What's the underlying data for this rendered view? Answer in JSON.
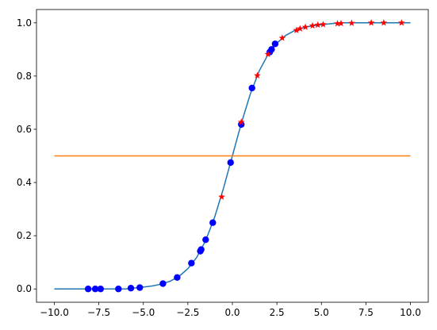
{
  "chart_data": {
    "type": "line",
    "title": "",
    "xlabel": "",
    "ylabel": "",
    "xlim": [
      -11,
      11
    ],
    "ylim": [
      -0.05,
      1.05
    ],
    "x_ticks": [
      -10.0,
      -7.5,
      -5.0,
      -2.5,
      0.0,
      2.5,
      5.0,
      7.5,
      10.0
    ],
    "x_tick_labels": [
      "−10.0",
      "−7.5",
      "−5.0",
      "−2.5",
      "0.0",
      "2.5",
      "5.0",
      "7.5",
      "10.0"
    ],
    "y_ticks": [
      0.0,
      0.2,
      0.4,
      0.6,
      0.8,
      1.0
    ],
    "y_tick_labels": [
      "0.0",
      "0.2",
      "0.4",
      "0.6",
      "0.8",
      "1.0"
    ],
    "grid": false,
    "legend": "none",
    "series": [
      {
        "kind": "line",
        "color": "#1f77b4",
        "x": [
          -10,
          -9,
          -8,
          -7,
          -6,
          -5,
          -4.5,
          -4,
          -3.5,
          -3,
          -2.5,
          -2,
          -1.5,
          -1,
          -0.5,
          0,
          0.5,
          1,
          1.5,
          2,
          2.5,
          3,
          3.5,
          4,
          4.5,
          5,
          6,
          7,
          8,
          9,
          10
        ],
        "y": [
          0.0,
          0.0,
          0.0,
          0.0,
          0.0,
          0.007,
          0.011,
          0.018,
          0.029,
          0.047,
          0.076,
          0.119,
          0.182,
          0.269,
          0.378,
          0.5,
          0.622,
          0.731,
          0.818,
          0.881,
          0.924,
          0.953,
          0.971,
          0.982,
          0.989,
          0.993,
          1.0,
          1.0,
          1.0,
          1.0,
          1.0
        ]
      },
      {
        "kind": "line",
        "color": "#ff7f0e",
        "x": [
          -10,
          10
        ],
        "y": [
          0.5,
          0.5
        ]
      },
      {
        "kind": "scatter",
        "marker": "circle",
        "color": "#0000ff",
        "x": [
          -8.1,
          -7.7,
          -7.4,
          -6.4,
          -5.7,
          -5.2,
          -3.9,
          -3.1,
          -2.3,
          -1.8,
          -1.75,
          -1.5,
          -1.1,
          -0.1,
          0.5,
          1.1,
          2.1,
          2.2,
          2.4
        ],
        "y": [
          0.0,
          0.0,
          0.0,
          0.0,
          0.003,
          0.005,
          0.02,
          0.043,
          0.097,
          0.142,
          0.148,
          0.185,
          0.249,
          0.475,
          0.618,
          0.755,
          0.89,
          0.9,
          0.921
        ]
      },
      {
        "kind": "scatter",
        "marker": "star",
        "color": "#ff0000",
        "x": [
          -0.6,
          0.5,
          1.4,
          2.0,
          2.8,
          3.6,
          3.8,
          4.1,
          4.5,
          4.8,
          5.1,
          5.9,
          6.1,
          6.7,
          7.8,
          8.5,
          9.5
        ],
        "y": [
          0.346,
          0.627,
          0.802,
          0.882,
          0.943,
          0.972,
          0.978,
          0.984,
          0.989,
          0.992,
          0.994,
          0.997,
          0.998,
          0.999,
          1.0,
          1.0,
          1.0
        ]
      }
    ]
  }
}
